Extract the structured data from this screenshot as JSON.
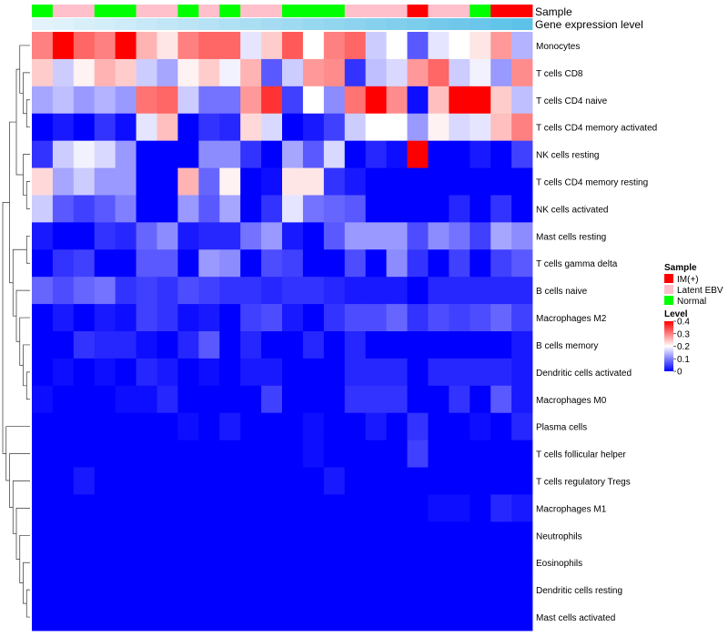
{
  "chart_data": {
    "type": "heatmap",
    "title": "",
    "annotation_tracks": [
      "Sample",
      "Gene expression level"
    ],
    "columns": 24,
    "rows": [
      "Monocytes",
      "T cells CD8",
      "T cells CD4 naive",
      "T cells CD4 memory activated",
      "NK cells resting",
      "T cells CD4 memory resting",
      "NK cells activated",
      "Mast cells resting",
      "T cells gamma delta",
      "B cells naive",
      "Macrophages M2",
      "B cells memory",
      "Dendritic cells activated",
      "Macrophages M0",
      "Plasma cells",
      "T cells follicular helper",
      "T cells regulatory  Tregs",
      "Macrophages M1",
      "Neutrophils",
      "Eosinophils",
      "Dendritic cells resting",
      "Mast cells activated"
    ],
    "sample_annotation": [
      "Normal",
      "Latent EBV",
      "Latent EBV",
      "Normal",
      "Normal",
      "Latent EBV",
      "Latent EBV",
      "Normal",
      "Latent EBV",
      "Normal",
      "Latent EBV",
      "Latent EBV",
      "Normal",
      "Normal",
      "Normal",
      "Latent EBV",
      "Latent EBV",
      "Latent EBV",
      "IM(+)",
      "Latent EBV",
      "Latent EBV",
      "Normal",
      "IM(+)",
      "IM(+)"
    ],
    "gene_expression_level": [
      0.0,
      0.04,
      0.09,
      0.13,
      0.17,
      0.22,
      0.26,
      0.3,
      0.35,
      0.39,
      0.43,
      0.48,
      0.52,
      0.57,
      0.61,
      0.65,
      0.7,
      0.74,
      0.78,
      0.83,
      0.87,
      0.91,
      0.96,
      1.0
    ],
    "values": [
      [
        0.3,
        0.4,
        0.32,
        0.3,
        0.4,
        0.26,
        0.22,
        0.3,
        0.32,
        0.32,
        0.18,
        0.24,
        0.33,
        0.2,
        0.3,
        0.32,
        0.16,
        0.2,
        0.07,
        0.18,
        0.2,
        0.22,
        0.28,
        0.14
      ],
      [
        0.24,
        0.16,
        0.21,
        0.26,
        0.24,
        0.16,
        0.13,
        0.21,
        0.24,
        0.19,
        0.26,
        0.07,
        0.16,
        0.28,
        0.29,
        0.04,
        0.15,
        0.17,
        0.28,
        0.32,
        0.16,
        0.19,
        0.12,
        0.29
      ],
      [
        0.13,
        0.15,
        0.12,
        0.14,
        0.12,
        0.31,
        0.32,
        0.16,
        0.09,
        0.09,
        0.28,
        0.36,
        0.05,
        0.2,
        0.11,
        0.31,
        0.4,
        0.29,
        0.01,
        0.25,
        0.4,
        0.4,
        0.24,
        0.15
      ],
      [
        0.0,
        0.02,
        0.0,
        0.04,
        0.01,
        0.18,
        0.25,
        0.0,
        0.04,
        0.03,
        0.23,
        0.17,
        0.0,
        0.02,
        0.05,
        0.16,
        0.2,
        0.2,
        0.12,
        0.21,
        0.17,
        0.18,
        0.25,
        0.3
      ],
      [
        0.04,
        0.16,
        0.19,
        0.17,
        0.12,
        0.0,
        0.0,
        0.0,
        0.11,
        0.11,
        0.04,
        0.0,
        0.13,
        0.07,
        0.17,
        0.0,
        0.03,
        0.01,
        0.4,
        0.0,
        0.0,
        0.02,
        0.0,
        0.05
      ],
      [
        0.23,
        0.13,
        0.16,
        0.12,
        0.12,
        0.0,
        0.0,
        0.26,
        0.08,
        0.21,
        0.0,
        0.01,
        0.22,
        0.22,
        0.04,
        0.02,
        0.0,
        0.0,
        0.0,
        0.0,
        0.0,
        0.0,
        0.0,
        0.0
      ],
      [
        0.16,
        0.07,
        0.05,
        0.07,
        0.1,
        0.0,
        0.0,
        0.12,
        0.07,
        0.13,
        0.0,
        0.04,
        0.18,
        0.09,
        0.08,
        0.07,
        0.0,
        0.0,
        0.0,
        0.0,
        0.03,
        0.0,
        0.04,
        0.0
      ],
      [
        0.02,
        0.0,
        0.0,
        0.04,
        0.03,
        0.08,
        0.11,
        0.02,
        0.03,
        0.03,
        0.09,
        0.12,
        0.02,
        0.0,
        0.07,
        0.12,
        0.12,
        0.12,
        0.06,
        0.11,
        0.09,
        0.05,
        0.13,
        0.11
      ],
      [
        0.0,
        0.04,
        0.05,
        0.0,
        0.0,
        0.07,
        0.07,
        0.0,
        0.12,
        0.11,
        0.0,
        0.06,
        0.05,
        0.0,
        0.0,
        0.06,
        0.0,
        0.11,
        0.04,
        0.0,
        0.05,
        0.0,
        0.05,
        0.07
      ],
      [
        0.08,
        0.06,
        0.08,
        0.09,
        0.04,
        0.05,
        0.04,
        0.06,
        0.05,
        0.04,
        0.04,
        0.03,
        0.04,
        0.04,
        0.03,
        0.02,
        0.02,
        0.02,
        0.0,
        0.03,
        0.03,
        0.03,
        0.03,
        0.03
      ],
      [
        0.0,
        0.02,
        0.0,
        0.02,
        0.01,
        0.05,
        0.04,
        0.01,
        0.02,
        0.0,
        0.05,
        0.06,
        0.02,
        0.0,
        0.04,
        0.06,
        0.06,
        0.08,
        0.04,
        0.06,
        0.05,
        0.06,
        0.08,
        0.05
      ],
      [
        0.0,
        0.0,
        0.04,
        0.03,
        0.03,
        0.01,
        0.0,
        0.03,
        0.07,
        0.0,
        0.03,
        0.0,
        0.0,
        0.03,
        0.0,
        0.03,
        0.0,
        0.0,
        0.0,
        0.0,
        0.0,
        0.0,
        0.0,
        0.02
      ],
      [
        0.0,
        0.01,
        0.0,
        0.01,
        0.0,
        0.03,
        0.02,
        0.0,
        0.01,
        0.0,
        0.02,
        0.02,
        0.0,
        0.0,
        0.0,
        0.03,
        0.03,
        0.03,
        0.0,
        0.03,
        0.03,
        0.03,
        0.03,
        0.02
      ],
      [
        0.01,
        0.0,
        0.0,
        0.0,
        0.01,
        0.01,
        0.03,
        0.0,
        0.0,
        0.0,
        0.0,
        0.05,
        0.0,
        0.0,
        0.0,
        0.04,
        0.04,
        0.04,
        0.0,
        0.0,
        0.04,
        0.0,
        0.07,
        0.02
      ],
      [
        0.0,
        0.0,
        0.0,
        0.0,
        0.0,
        0.0,
        0.0,
        0.01,
        0.0,
        0.02,
        0.0,
        0.0,
        0.0,
        0.01,
        0.0,
        0.0,
        0.02,
        0.0,
        0.04,
        0.0,
        0.0,
        0.01,
        0.0,
        0.03
      ],
      [
        0.0,
        0.0,
        0.0,
        0.0,
        0.0,
        0.0,
        0.0,
        0.0,
        0.0,
        0.0,
        0.0,
        0.0,
        0.0,
        0.01,
        0.0,
        0.0,
        0.0,
        0.0,
        0.05,
        0.0,
        0.0,
        0.0,
        0.0,
        0.0
      ],
      [
        0.0,
        0.0,
        0.02,
        0.0,
        0.0,
        0.0,
        0.0,
        0.0,
        0.0,
        0.0,
        0.0,
        0.0,
        0.0,
        0.0,
        0.02,
        0.0,
        0.0,
        0.0,
        0.0,
        0.0,
        0.0,
        0.0,
        0.0,
        0.0
      ],
      [
        0.0,
        0.0,
        0.0,
        0.0,
        0.0,
        0.0,
        0.0,
        0.0,
        0.0,
        0.0,
        0.0,
        0.0,
        0.0,
        0.0,
        0.0,
        0.0,
        0.0,
        0.0,
        0.0,
        0.01,
        0.01,
        0.0,
        0.03,
        0.02
      ],
      [
        0.0,
        0.0,
        0.0,
        0.0,
        0.0,
        0.0,
        0.0,
        0.0,
        0.0,
        0.0,
        0.0,
        0.0,
        0.0,
        0.0,
        0.0,
        0.0,
        0.0,
        0.0,
        0.0,
        0.0,
        0.0,
        0.0,
        0.0,
        0.0
      ],
      [
        0.0,
        0.0,
        0.0,
        0.0,
        0.0,
        0.0,
        0.0,
        0.0,
        0.0,
        0.0,
        0.0,
        0.0,
        0.0,
        0.0,
        0.0,
        0.0,
        0.0,
        0.0,
        0.0,
        0.0,
        0.0,
        0.0,
        0.0,
        0.0
      ],
      [
        0.0,
        0.0,
        0.0,
        0.0,
        0.0,
        0.0,
        0.0,
        0.0,
        0.0,
        0.0,
        0.0,
        0.0,
        0.0,
        0.0,
        0.0,
        0.0,
        0.0,
        0.0,
        0.0,
        0.0,
        0.0,
        0.0,
        0.0,
        0.0
      ],
      [
        0.0,
        0.0,
        0.0,
        0.0,
        0.0,
        0.0,
        0.0,
        0.0,
        0.0,
        0.0,
        0.0,
        0.0,
        0.0,
        0.0,
        0.0,
        0.0,
        0.0,
        0.0,
        0.0,
        0.0,
        0.0,
        0.0,
        0.0,
        0.0
      ]
    ],
    "color_scale": {
      "low": "#0000ff",
      "mid": "#ffffff",
      "high": "#ff0000",
      "min": 0,
      "mid_value": 0.2,
      "max": 0.4
    },
    "expression_track_colors": {
      "low": "#e4f3fb",
      "high": "#5ec2e8"
    },
    "legend": {
      "sample": {
        "title": "Sample",
        "items": [
          {
            "label": "IM(+)",
            "color": "#ff0000"
          },
          {
            "label": "Latent EBV",
            "color": "#ffc0cb"
          },
          {
            "label": "Normal",
            "color": "#00ff00"
          }
        ]
      },
      "level": {
        "title": "Level",
        "ticks": [
          {
            "label": "0.4",
            "value": 0.4
          },
          {
            "label": "0.3",
            "value": 0.3
          },
          {
            "label": "0.2",
            "value": 0.2
          },
          {
            "label": "0.1",
            "value": 0.1
          },
          {
            "label": "0",
            "value": 0
          }
        ]
      }
    },
    "row_dendrogram": "[[[[0,[1,[2,3]]],[4,[5,6]]],[[7,8],[9,[10,[11,[12,13]]]]]],[14,[15,[16,[17,[18,[19,[20,21]]]]]]]]"
  }
}
